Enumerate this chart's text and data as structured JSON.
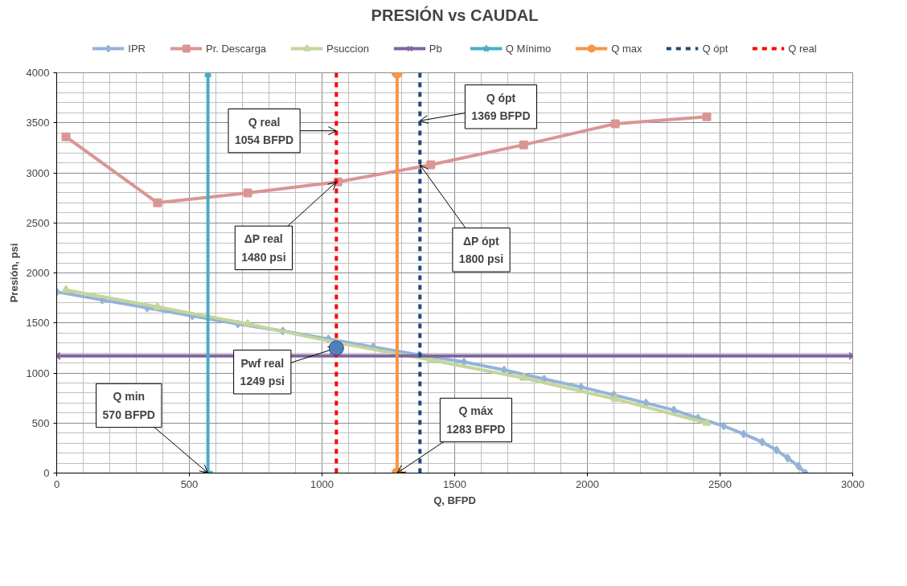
{
  "chart_data": {
    "type": "line",
    "title": "PRESIÓN vs CAUDAL",
    "xlabel": "Q, BFPD",
    "ylabel": "Presión, psi",
    "xlim": [
      0,
      3000
    ],
    "xticks": [
      0,
      500,
      1000,
      1500,
      2000,
      2500,
      3000
    ],
    "ylim": [
      0,
      4000
    ],
    "yticks": [
      0,
      500,
      1000,
      1500,
      2000,
      2500,
      3000,
      3500,
      4000
    ],
    "grid": true,
    "legend": "top",
    "series": [
      {
        "name": "IPR",
        "color": "#95b3d7",
        "marker": "diamond",
        "x": [
          0,
          172,
          341,
          511,
          683,
          852,
          1024,
          1193,
          1366,
          1535,
          1686,
          1837,
          1976,
          2100,
          2221,
          2326,
          2417,
          2514,
          2589,
          2659,
          2713,
          2755,
          2795,
          2822
        ],
        "values": [
          1810,
          1730,
          1650,
          1570,
          1490,
          1420,
          1340,
          1260,
          1180,
          1110,
          1030,
          940,
          860,
          780,
          700,
          630,
          550,
          470,
          390,
          310,
          230,
          150,
          70,
          0
        ]
      },
      {
        "name": "Pr. Descarga",
        "color": "#d99694",
        "marker": "square",
        "x": [
          35,
          380,
          720,
          1060,
          1410,
          1760,
          2105,
          2450
        ],
        "values": [
          3360,
          2700,
          2800,
          2910,
          3080,
          3280,
          3490,
          3560
        ]
      },
      {
        "name": "Psuccion",
        "color": "#c3d69b",
        "marker": "triangle",
        "x": [
          35,
          380,
          720,
          1060,
          1410,
          1760,
          2105,
          2450
        ],
        "values": [
          1830,
          1660,
          1490,
          1300,
          1130,
          950,
          740,
          500
        ]
      },
      {
        "name": "Pb",
        "color": "#8064a2",
        "marker": "cross",
        "x": [
          0,
          3000
        ],
        "values": [
          1170,
          1170
        ]
      },
      {
        "name": "Q Mínimo",
        "color": "#4bacc6",
        "marker": "star",
        "x": [
          570,
          570
        ],
        "values": [
          0,
          4000
        ]
      },
      {
        "name": "Q max",
        "color": "#f79646",
        "marker": "circle",
        "x": [
          1283,
          1283
        ],
        "values": [
          0,
          4000
        ]
      },
      {
        "name": "Q ópt",
        "color": "#1f497d",
        "line_style": "dashed",
        "x": [
          1369,
          1369
        ],
        "values": [
          0,
          4000
        ]
      },
      {
        "name": "Q real",
        "color": "#ff0000",
        "line_style": "dashed",
        "x": [
          1054,
          1054
        ],
        "values": [
          0,
          4000
        ]
      },
      {
        "type": "scatter",
        "color": "#4f81bd",
        "marker": "circle",
        "x": [
          1054
        ],
        "values": [
          1249
        ]
      }
    ],
    "annotations": [
      {
        "text": "Q real\n1054 BFPD",
        "x": 1054,
        "y": 3420
      },
      {
        "text": "Q ópt\n1369 BFPD",
        "x": 1369,
        "y": 3520
      },
      {
        "text": "ΔP real\n1480 psi",
        "x": 1054,
        "y": 2910
      },
      {
        "text": "ΔP ópt\n1800 psi",
        "x": 1369,
        "y": 3080
      },
      {
        "text": "Pwf real\n1249 psi",
        "x": 1054,
        "y": 1249
      },
      {
        "text": "Q min\n570 BFPD",
        "x": 570,
        "y": 0
      },
      {
        "text": "Q máx\n1283 BFPD",
        "x": 1283,
        "y": 0
      }
    ]
  }
}
